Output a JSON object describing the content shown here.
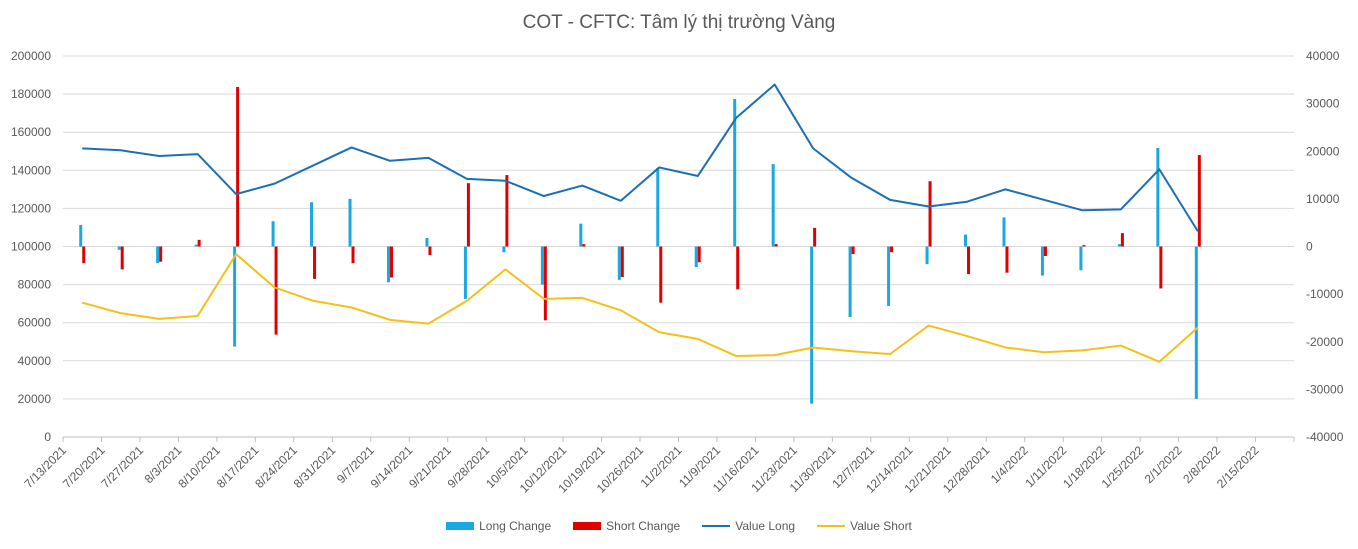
{
  "chart_data": {
    "type": "bar",
    "title": "COT - CFTC: Tâm lý thị trường Vàng",
    "xlabel": "",
    "ylabel": "",
    "categories": [
      "7/13/2021",
      "7/20/2021",
      "7/27/2021",
      "8/3/2021",
      "8/10/2021",
      "8/17/2021",
      "8/24/2021",
      "8/31/2021",
      "9/7/2021",
      "9/14/2021",
      "9/21/2021",
      "9/28/2021",
      "10/5/2021",
      "10/12/2021",
      "10/19/2021",
      "10/26/2021",
      "11/2/2021",
      "11/9/2021",
      "11/16/2021",
      "11/23/2021",
      "11/30/2021",
      "12/7/2021",
      "12/14/2021",
      "12/21/2021",
      "12/28/2021",
      "1/4/2022",
      "1/11/2022",
      "1/18/2022",
      "1/25/2022",
      "2/1/2022",
      "2/8/2022",
      "2/15/2022"
    ],
    "y_left": {
      "min": 0,
      "max": 200000,
      "step": 20000,
      "ticks": [
        "0",
        "20000",
        "40000",
        "60000",
        "80000",
        "100000",
        "120000",
        "140000",
        "160000",
        "180000",
        "200000"
      ]
    },
    "y_right": {
      "min": -40000,
      "max": 40000,
      "step": 10000,
      "ticks": [
        "-40000",
        "-30000",
        "-20000",
        "-10000",
        "0",
        "10000",
        "20000",
        "30000",
        "40000"
      ]
    },
    "grid": true,
    "legend_position": "bottom",
    "series": [
      {
        "name": "Long Change",
        "kind": "bar",
        "axis": "right",
        "color": "#1aa8e0",
        "values": [
          4500,
          -700,
          -3500,
          400,
          -21000,
          5300,
          9300,
          10000,
          -7500,
          1800,
          -11000,
          -1200,
          -8000,
          4800,
          -7000,
          16500,
          -4300,
          31000,
          17300,
          -33000,
          -14800,
          -12500,
          -3700,
          2500,
          6100,
          -6100,
          -5000,
          500,
          20700,
          -32000,
          null,
          null
        ]
      },
      {
        "name": "Short Change",
        "kind": "bar",
        "axis": "right",
        "color": "#e00000",
        "values": [
          -3500,
          -4800,
          -3200,
          1400,
          33500,
          -18500,
          -6800,
          -3500,
          -6500,
          -1800,
          13300,
          15000,
          -15500,
          500,
          -6400,
          -11800,
          -3300,
          -9000,
          500,
          3900,
          -1600,
          -1200,
          13700,
          -5800,
          -5500,
          -2000,
          300,
          2800,
          -8800,
          19200,
          null,
          null
        ]
      },
      {
        "name": "Value Long",
        "kind": "line",
        "axis": "left",
        "color": "#1b6fb3",
        "values": [
          151500,
          150500,
          147500,
          148500,
          127500,
          133000,
          142500,
          152000,
          145000,
          146500,
          135500,
          134500,
          126500,
          132000,
          124000,
          141500,
          137000,
          167500,
          185000,
          151500,
          136000,
          124500,
          121000,
          123500,
          130000,
          124500,
          119000,
          119500,
          140500,
          108000,
          null,
          null
        ]
      },
      {
        "name": "Value Short",
        "kind": "line",
        "axis": "left",
        "color": "#f5c018",
        "values": [
          70500,
          65000,
          62000,
          63500,
          96000,
          78500,
          71500,
          68000,
          61500,
          59500,
          71500,
          88000,
          72500,
          73000,
          66500,
          55000,
          51500,
          42500,
          43000,
          47000,
          45000,
          43500,
          58500,
          53000,
          47000,
          44500,
          45500,
          48000,
          39500,
          57500,
          null,
          null
        ]
      }
    ]
  }
}
